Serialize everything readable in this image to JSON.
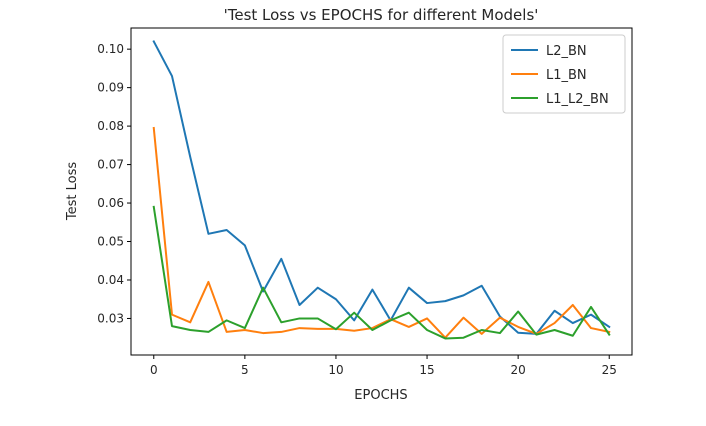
{
  "chart_data": {
    "type": "line",
    "title": "'Test Loss vs EPOCHS for different Models'",
    "xlabel": "EPOCHS",
    "ylabel": "Test Loss",
    "xlim": [
      -1.25,
      26.25
    ],
    "ylim": [
      0.0205,
      0.1055
    ],
    "xticks": [
      0,
      5,
      10,
      15,
      20,
      25
    ],
    "xtick_labels": [
      "0",
      "5",
      "10",
      "15",
      "20",
      "25"
    ],
    "yticks": [
      0.03,
      0.04,
      0.05,
      0.06,
      0.07,
      0.08,
      0.09,
      0.1
    ],
    "ytick_labels": [
      "0.03",
      "0.04",
      "0.05",
      "0.06",
      "0.07",
      "0.08",
      "0.09",
      "0.10"
    ],
    "grid": false,
    "legend_position": "top-right",
    "x": [
      0,
      1,
      2,
      3,
      4,
      5,
      6,
      7,
      8,
      9,
      10,
      11,
      12,
      13,
      14,
      15,
      16,
      17,
      18,
      19,
      20,
      21,
      22,
      23,
      24,
      25
    ],
    "series": [
      {
        "name": "L2_BN",
        "color": "#1f77b4",
        "values": [
          0.102,
          0.093,
          0.072,
          0.052,
          0.053,
          0.049,
          0.037,
          0.0455,
          0.0335,
          0.038,
          0.035,
          0.0295,
          0.0375,
          0.0295,
          0.038,
          0.034,
          0.0345,
          0.036,
          0.0385,
          0.0305,
          0.0263,
          0.026,
          0.032,
          0.0288,
          0.031,
          0.0278
        ]
      },
      {
        "name": "L1_BN",
        "color": "#ff7f0e",
        "values": [
          0.0795,
          0.031,
          0.029,
          0.0395,
          0.0265,
          0.027,
          0.0262,
          0.0265,
          0.0275,
          0.0273,
          0.0273,
          0.0268,
          0.0275,
          0.0298,
          0.0278,
          0.03,
          0.025,
          0.0302,
          0.026,
          0.0302,
          0.0278,
          0.026,
          0.0288,
          0.0335,
          0.0275,
          0.0265
        ]
      },
      {
        "name": "L1_L2_BN",
        "color": "#2ca02c",
        "values": [
          0.059,
          0.028,
          0.027,
          0.0265,
          0.0295,
          0.0275,
          0.038,
          0.029,
          0.03,
          0.03,
          0.0272,
          0.0315,
          0.027,
          0.0295,
          0.0315,
          0.027,
          0.0248,
          0.025,
          0.027,
          0.0262,
          0.0318,
          0.0258,
          0.027,
          0.0255,
          0.033,
          0.0258
        ]
      }
    ]
  }
}
